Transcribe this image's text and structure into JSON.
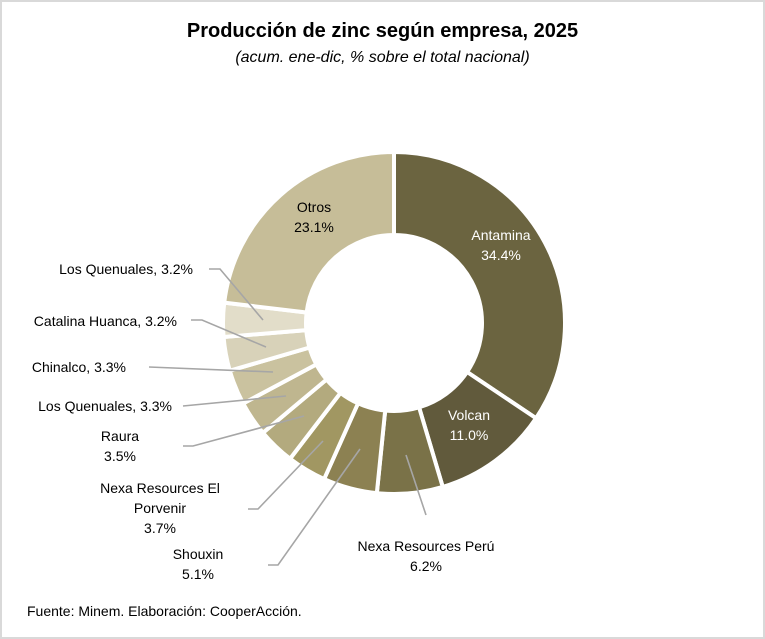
{
  "chart_data": {
    "type": "pie",
    "subtype": "donut",
    "title": "Producción  de zinc según empresa, 2025",
    "subtitle": "(acum. ene-dic, % sobre el total nacional)",
    "source": "Fuente: Minem. Elaboración: CooperAcción.",
    "unit": "%",
    "slices": [
      {
        "name": "Antamina",
        "value": 34.4,
        "label": [
          "Antamina",
          "34.4%"
        ],
        "color": "#6b6440",
        "text_color": "#ffffff"
      },
      {
        "name": "Volcan",
        "value": 11.0,
        "label": [
          "Volcan",
          "11.0%"
        ],
        "color": "#615a3c",
        "text_color": "#ffffff"
      },
      {
        "name": "Nexa Resources Perú",
        "value": 6.2,
        "label": [
          "Nexa Resources Perú",
          "6.2%"
        ],
        "color": "#7a7248",
        "text_color": "#000000"
      },
      {
        "name": "Shouxin",
        "value": 5.1,
        "label": [
          "Shouxin",
          "5.1%"
        ],
        "color": "#8c8152",
        "text_color": "#000000"
      },
      {
        "name": "Nexa Resources El Porvenir",
        "value": 3.7,
        "label": [
          "Nexa Resources El",
          "Porvenir",
          "3.7%"
        ],
        "color": "#a19762",
        "text_color": "#000000"
      },
      {
        "name": "Raura",
        "value": 3.5,
        "label": [
          "Raura",
          "3.5%"
        ],
        "color": "#b3aa7e",
        "text_color": "#000000"
      },
      {
        "name": "Los Quenuales",
        "value": 3.3,
        "label": [
          "Los Quenuales, 3.3%"
        ],
        "color": "#bfb68f",
        "text_color": "#000000"
      },
      {
        "name": "Chinalco",
        "value": 3.3,
        "label": [
          "Chinalco, 3.3%"
        ],
        "color": "#cac29f",
        "text_color": "#000000"
      },
      {
        "name": "Catalina Huanca",
        "value": 3.2,
        "label": [
          "Catalina Huanca, 3.2%"
        ],
        "color": "#d8d2b9",
        "text_color": "#000000"
      },
      {
        "name": "Los Quenuales",
        "value": 3.2,
        "label": [
          "Los Quenuales, 3.2%"
        ],
        "color": "#e2ddc9",
        "text_color": "#000000"
      },
      {
        "name": "Otros",
        "value": 23.1,
        "label": [
          "Otros",
          "23.1%"
        ],
        "color": "#c6bd98",
        "text_color": "#000000"
      }
    ],
    "legend": "none"
  }
}
